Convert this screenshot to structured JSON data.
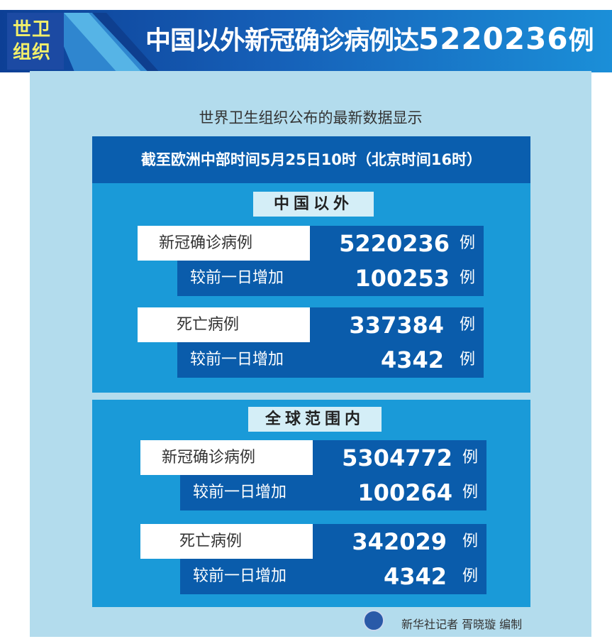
{
  "header": {
    "badge_line1": "世卫",
    "badge_line2": "组织",
    "title_prefix": "中国以外新冠确诊病例达",
    "title_number": "5220236",
    "title_suffix": "例"
  },
  "subtitle": "世界卫生组织公布的最新数据显示",
  "time_bar": "截至欧洲中部时间5月25日10时（北京时间16时）",
  "sections": [
    {
      "title": "中国以外",
      "confirmed_label": "新冠确诊病例",
      "confirmed": "5220236",
      "increase_label": "较前一日增加",
      "confirmed_increase": "100253",
      "deaths_label": "死亡病例",
      "deaths": "337384",
      "deaths_increase": "4342",
      "unit": "例"
    },
    {
      "title": "全球范围内",
      "confirmed_label": "新冠确诊病例",
      "confirmed": "5304772",
      "increase_label": "较前一日增加",
      "confirmed_increase": "100264",
      "deaths_label": "死亡病例",
      "deaths": "342029",
      "deaths_increase": "4342",
      "unit": "例"
    }
  ],
  "credit": "新华社记者 胥晓璇 编制",
  "colors": {
    "banner": "#1660b8",
    "badge_text": "#f2ef6a",
    "panel": "#b3dced",
    "section": "#1a9ad8",
    "dark_row": "#0a5cab"
  }
}
